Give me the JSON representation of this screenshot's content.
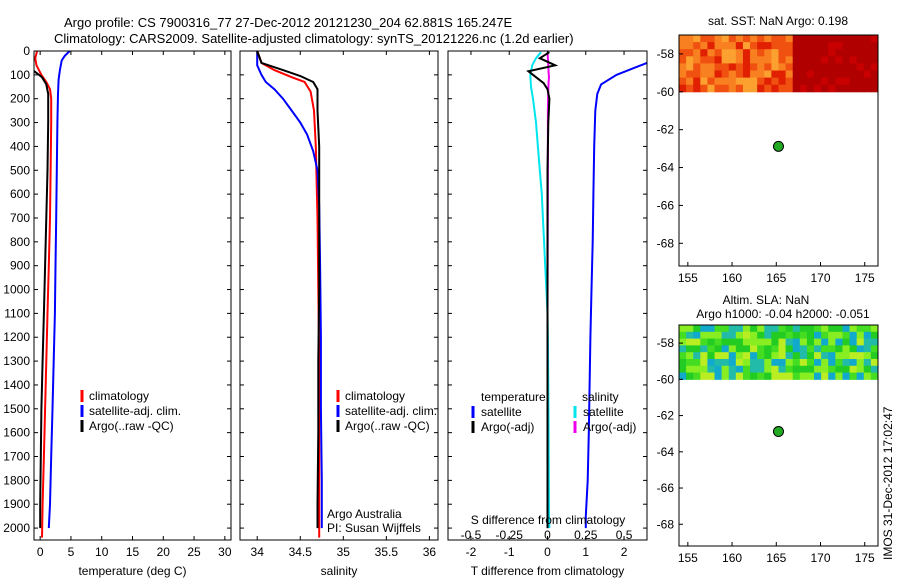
{
  "title": {
    "line1": "Argo profile: CS 7900316_77 27-Dec-2012 20121230_204 62.881S 165.247E",
    "line2": "Climatology: CARS2009. Satellite-adjusted climatology: synTS_20121226.nc (1.2d earlier)"
  },
  "colors": {
    "red": "#ff0000",
    "blue": "#0000ff",
    "black": "#000000",
    "cyan": "#00e5ee",
    "magenta": "#ee00ee",
    "marker": "#22aa22"
  },
  "chart_data": [
    {
      "type": "line",
      "xlabel": "temperature (deg C)",
      "ylim": [
        0,
        2050
      ],
      "xlim": [
        -1,
        31
      ],
      "xticks": [
        0,
        5,
        10,
        15,
        20,
        25,
        30
      ],
      "yticks": [
        0,
        100,
        200,
        300,
        400,
        500,
        600,
        700,
        800,
        900,
        1000,
        1100,
        1200,
        1300,
        1400,
        1500,
        1600,
        1700,
        1800,
        1900,
        2000
      ],
      "legend": [
        "climatology",
        "satellite-adj. clim.",
        "Argo(..raw -QC)"
      ],
      "series": [
        {
          "name": "climatology",
          "color": "red",
          "points": [
            [
              -0.5,
              0
            ],
            [
              -0.8,
              30
            ],
            [
              -0.6,
              60
            ],
            [
              0.2,
              100
            ],
            [
              1.0,
              130
            ],
            [
              1.6,
              160
            ],
            [
              1.8,
              200
            ],
            [
              1.8,
              300
            ],
            [
              1.7,
              500
            ],
            [
              1.6,
              700
            ],
            [
              1.4,
              900
            ],
            [
              1.2,
              1100
            ],
            [
              1.0,
              1300
            ],
            [
              0.8,
              1500
            ],
            [
              0.6,
              1700
            ],
            [
              0.4,
              1900
            ],
            [
              0.3,
              2040
            ]
          ]
        },
        {
          "name": "satellite-adj. clim.",
          "color": "blue",
          "points": [
            [
              4.8,
              0
            ],
            [
              4.0,
              20
            ],
            [
              3.5,
              40
            ],
            [
              3.2,
              80
            ],
            [
              3.0,
              120
            ],
            [
              2.9,
              180
            ],
            [
              2.8,
              300
            ],
            [
              2.7,
              500
            ],
            [
              2.6,
              700
            ],
            [
              2.5,
              900
            ],
            [
              2.4,
              1100
            ],
            [
              2.2,
              1300
            ],
            [
              2.0,
              1500
            ],
            [
              1.8,
              1700
            ],
            [
              1.6,
              1900
            ],
            [
              1.4,
              2000
            ]
          ]
        },
        {
          "name": "Argo(..raw -QC)",
          "color": "black",
          "points": [
            [
              -1.2,
              0
            ],
            [
              -1.5,
              50
            ],
            [
              -1.2,
              80
            ],
            [
              0.3,
              110
            ],
            [
              1.0,
              140
            ],
            [
              1.3,
              180
            ],
            [
              1.3,
              300
            ],
            [
              1.2,
              500
            ],
            [
              1.0,
              700
            ],
            [
              0.8,
              900
            ],
            [
              0.6,
              1100
            ],
            [
              0.4,
              1300
            ],
            [
              0.2,
              1500
            ],
            [
              0.1,
              1700
            ],
            [
              0.0,
              1900
            ],
            [
              0.0,
              2000
            ]
          ]
        }
      ]
    },
    {
      "type": "line",
      "xlabel": "salinity",
      "ylim": [
        0,
        2050
      ],
      "xlim": [
        33.8,
        36.1
      ],
      "xticks": [
        34,
        34.5,
        35,
        35.5,
        36
      ],
      "legend": [
        "climatology",
        "satellite-adj. clim.",
        "Argo(..raw -QC)"
      ],
      "annotation": [
        "Argo Australia",
        "PI: Susan Wijffels"
      ],
      "series": [
        {
          "name": "climatology",
          "color": "red",
          "points": [
            [
              34.0,
              0
            ],
            [
              34.05,
              50
            ],
            [
              34.2,
              80
            ],
            [
              34.4,
              110
            ],
            [
              34.55,
              130
            ],
            [
              34.62,
              170
            ],
            [
              34.66,
              250
            ],
            [
              34.68,
              400
            ],
            [
              34.7,
              700
            ],
            [
              34.71,
              1000
            ],
            [
              34.72,
              1300
            ],
            [
              34.72,
              1600
            ],
            [
              34.72,
              1900
            ],
            [
              34.72,
              2040
            ]
          ]
        },
        {
          "name": "satellite-adj. clim.",
          "color": "blue",
          "points": [
            [
              34.0,
              0
            ],
            [
              34.0,
              60
            ],
            [
              34.05,
              100
            ],
            [
              34.1,
              130
            ],
            [
              34.2,
              160
            ],
            [
              34.3,
              200
            ],
            [
              34.4,
              250
            ],
            [
              34.5,
              300
            ],
            [
              34.58,
              350
            ],
            [
              34.65,
              420
            ],
            [
              34.7,
              500
            ],
            [
              34.72,
              650
            ],
            [
              34.73,
              900
            ],
            [
              34.74,
              1200
            ],
            [
              34.74,
              1500
            ],
            [
              34.75,
              1800
            ],
            [
              34.75,
              2000
            ]
          ]
        },
        {
          "name": "Argo(..raw -QC)",
          "color": "black",
          "points": [
            [
              34.0,
              0
            ],
            [
              34.05,
              50
            ],
            [
              34.3,
              80
            ],
            [
              34.5,
              105
            ],
            [
              34.65,
              130
            ],
            [
              34.7,
              160
            ],
            [
              34.7,
              250
            ],
            [
              34.72,
              400
            ],
            [
              34.72,
              700
            ],
            [
              34.72,
              1000
            ],
            [
              34.71,
              1300
            ],
            [
              34.71,
              1600
            ],
            [
              34.7,
              1900
            ],
            [
              34.7,
              2000
            ]
          ]
        }
      ]
    },
    {
      "type": "line",
      "xlabel": "T difference from climatology",
      "xlabel_top": "S difference from climatology",
      "ylim": [
        0,
        2050
      ],
      "xlim": [
        -2.6,
        2.6
      ],
      "xticks": [
        -2,
        -1,
        0,
        1,
        2
      ],
      "xticks_top": [
        -0.5,
        -0.25,
        0,
        0.25,
        0.5
      ],
      "legend_titles": [
        "temperature",
        "salinity"
      ],
      "legend": [
        "satellite",
        "Argo(-adj)",
        "satellite",
        "Argo(-adj)"
      ],
      "series": [
        {
          "name": "satellite",
          "variable": "S",
          "color": "cyan",
          "points": [
            [
              -0.17,
              5
            ],
            [
              -0.3,
              30
            ],
            [
              -0.4,
              60
            ],
            [
              -0.45,
              100
            ],
            [
              -0.43,
              150
            ],
            [
              -0.38,
              200
            ],
            [
              -0.3,
              300
            ],
            [
              -0.25,
              400
            ],
            [
              -0.2,
              500
            ],
            [
              -0.15,
              600
            ],
            [
              -0.12,
              700
            ],
            [
              -0.09,
              800
            ],
            [
              -0.06,
              900
            ],
            [
              -0.03,
              1000
            ],
            [
              0,
              1100
            ],
            [
              0.01,
              1200
            ],
            [
              0.02,
              1400
            ],
            [
              0.03,
              1600
            ],
            [
              0.035,
              1800
            ],
            [
              0.04,
              1950
            ],
            [
              0.05,
              2000
            ]
          ]
        },
        {
          "name": "Argo(-adj)",
          "variable": "S",
          "color": "magenta",
          "points": [
            [
              0.0,
              5
            ],
            [
              0.01,
              30
            ],
            [
              0.02,
              60
            ],
            [
              0.03,
              90
            ],
            [
              0.04,
              110
            ],
            [
              0.03,
              130
            ],
            [
              0.02,
              160
            ],
            [
              0.01,
              250
            ],
            [
              0.01,
              500
            ],
            [
              0.005,
              800
            ],
            [
              0.0,
              1100
            ],
            [
              0.0,
              1400
            ],
            [
              0.0,
              1700
            ],
            [
              0.0,
              2000
            ]
          ]
        },
        {
          "name": "satellite",
          "variable": "T",
          "color": "blue",
          "points": [
            [
              2.6,
              50
            ],
            [
              1.8,
              100
            ],
            [
              1.4,
              140
            ],
            [
              1.3,
              180
            ],
            [
              1.25,
              250
            ],
            [
              1.22,
              400
            ],
            [
              1.2,
              600
            ],
            [
              1.18,
              800
            ],
            [
              1.15,
              1000
            ],
            [
              1.12,
              1200
            ],
            [
              1.1,
              1400
            ],
            [
              1.08,
              1600
            ],
            [
              1.05,
              1800
            ],
            [
              1.0,
              1950
            ],
            [
              1.0,
              2000
            ]
          ]
        },
        {
          "name": "Argo(-adj)",
          "variable": "T",
          "color": "black",
          "points": [
            [
              0.05,
              5
            ],
            [
              -0.2,
              30
            ],
            [
              0.2,
              60
            ],
            [
              -0.5,
              85
            ],
            [
              -0.3,
              110
            ],
            [
              -0.1,
              135
            ],
            [
              0,
              160
            ],
            [
              0.05,
              200
            ],
            [
              0.02,
              300
            ],
            [
              0,
              500
            ],
            [
              0,
              800
            ],
            [
              0,
              1100
            ],
            [
              0,
              1400
            ],
            [
              0,
              1700
            ],
            [
              0,
              2000
            ]
          ]
        }
      ]
    },
    {
      "type": "heatmap",
      "title": "sat. SST: NaN Argo: 0.198",
      "xlim": [
        154,
        176.5
      ],
      "ylim": [
        -69.2,
        -57
      ],
      "xticks": [
        155,
        160,
        165,
        170,
        175
      ],
      "yticks": [
        -58,
        -60,
        -62,
        -64,
        -66,
        -68
      ],
      "field_extent_lat": [
        -57,
        -60
      ],
      "argo_position": [
        165.247,
        -62.881
      ]
    },
    {
      "type": "heatmap",
      "title": "Altim. SLA: NaN",
      "subtitle": "Argo h1000: -0.04 h2000: -0.051",
      "xlim": [
        154,
        176.5
      ],
      "ylim": [
        -69.2,
        -57
      ],
      "xticks": [
        155,
        160,
        165,
        170,
        175
      ],
      "yticks": [
        -58,
        -60,
        -62,
        -64,
        -66,
        -68
      ],
      "field_extent_lat": [
        -57,
        -60
      ],
      "argo_position": [
        165.247,
        -62.881
      ]
    }
  ],
  "side_stamp": "IMOS 31-Dec-2012 17:02:47"
}
